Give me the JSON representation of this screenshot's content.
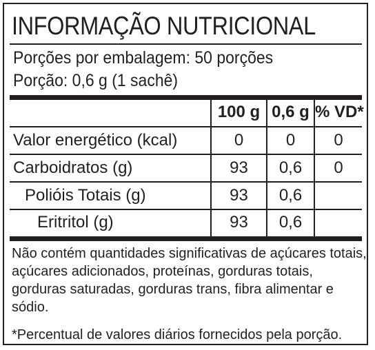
{
  "title": "INFORMAÇÃO NUTRICIONAL",
  "servings_per_package": "Porções por embalagem: 50 porções",
  "serving_size": "Porção: 0,6 g (1 sachê)",
  "table": {
    "headers": [
      "",
      "100 g",
      "0,6 g",
      "% VD*"
    ],
    "rows": [
      {
        "name": "Valor energético (kcal)",
        "per100": "0",
        "perServing": "0",
        "vd": "0"
      },
      {
        "name": "Carboidratos (g)",
        "per100": "93",
        "perServing": "0,6",
        "vd": "0"
      },
      {
        "name": "Polióis Totais (g)",
        "per100": "93",
        "perServing": "0,6",
        "vd": ""
      },
      {
        "name": "Eritritol (g)",
        "per100": "93",
        "perServing": "0,6",
        "vd": ""
      }
    ]
  },
  "footnote_main": "Não contém quantidades significativas de açúcares totais, açúcares adicionados, proteínas, gorduras totais, gorduras saturadas, gorduras trans, fibra alimentar e sódio.",
  "footnote_vd": "*Percentual de valores diários fornecidos pela porção."
}
